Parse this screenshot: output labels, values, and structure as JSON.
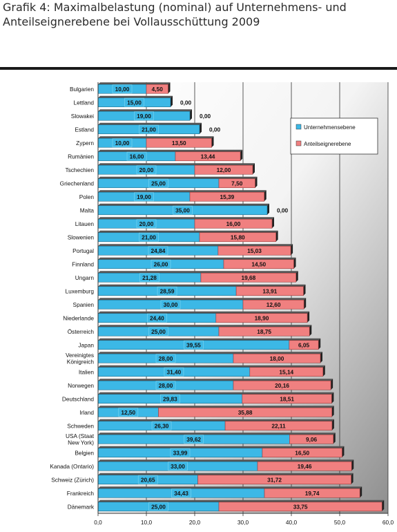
{
  "header": {
    "title_line1": "Grafik 4: Maximalbelastung (nominal) auf Unternehmens- und",
    "title_line2": "Anteilseignerebene bei Vollausschüttung 2009"
  },
  "chart_data": {
    "type": "bar",
    "orientation": "horizontal",
    "stacked": true,
    "categories": [
      "Bulgarien",
      "Lettland",
      "Slowakei",
      "Estland",
      "Zypern",
      "Rumänien",
      "Tschechien",
      "Griechenland",
      "Polen",
      "Malta",
      "Litauen",
      "Slowenien",
      "Portugal",
      "Finnland",
      "Ungarn",
      "Luxemburg",
      "Spanien",
      "Niederlande",
      "Österreich",
      "Japan",
      "Vereinigtes Königreich",
      "Italien",
      "Norwegen",
      "Deutschland",
      "Irland",
      "Schweden",
      "USA (Staat New York)",
      "Belgien",
      "Kanada (Ontario)",
      "Schweiz (Zürich)",
      "Frankreich",
      "Dänemark"
    ],
    "category_lines": [
      [
        "Bulgarien"
      ],
      [
        "Lettland"
      ],
      [
        "Slowakei"
      ],
      [
        "Estland"
      ],
      [
        "Zypern"
      ],
      [
        "Rumänien"
      ],
      [
        "Tschechien"
      ],
      [
        "Griechenland"
      ],
      [
        "Polen"
      ],
      [
        "Malta"
      ],
      [
        "Litauen"
      ],
      [
        "Slowenien"
      ],
      [
        "Portugal"
      ],
      [
        "Finnland"
      ],
      [
        "Ungarn"
      ],
      [
        "Luxemburg"
      ],
      [
        "Spanien"
      ],
      [
        "Niederlande"
      ],
      [
        "Österreich"
      ],
      [
        "Japan"
      ],
      [
        "Vereinigtes",
        "Königreich"
      ],
      [
        "Italien"
      ],
      [
        "Norwegen"
      ],
      [
        "Deutschland"
      ],
      [
        "Irland"
      ],
      [
        "Schweden"
      ],
      [
        "USA (Staat",
        "New York)"
      ],
      [
        "Belgien"
      ],
      [
        "Kanada (Ontario)"
      ],
      [
        "Schweiz (Zürich)"
      ],
      [
        "Frankreich"
      ],
      [
        "Dänemark"
      ]
    ],
    "series": [
      {
        "name": "Unternehmensebene",
        "color": "#3cb8e6",
        "values": [
          10.0,
          15.0,
          19.0,
          21.0,
          10.0,
          16.0,
          20.0,
          25.0,
          19.0,
          35.0,
          20.0,
          21.0,
          24.84,
          26.0,
          21.28,
          28.59,
          30.0,
          24.4,
          25.0,
          39.55,
          28.0,
          31.4,
          28.0,
          29.83,
          12.5,
          26.3,
          39.62,
          33.99,
          33.0,
          20.65,
          34.43,
          25.0
        ],
        "labels": [
          "10,00",
          "15,00",
          "19,00",
          "21,00",
          "10,00",
          "16,00",
          "20,00",
          "25,00",
          "19,00",
          "35,00",
          "20,00",
          "21,00",
          "24,84",
          "26,00",
          "21,28",
          "28,59",
          "30,00",
          "24,40",
          "25,00",
          "39,55",
          "28,00",
          "31,40",
          "28,00",
          "29,83",
          "12,50",
          "26,30",
          "39,62",
          "33,99",
          "33,00",
          "20,65",
          "34,43",
          "25,00"
        ]
      },
      {
        "name": "Anteilseignerebene",
        "color": "#f08080",
        "values": [
          4.5,
          0.0,
          0.0,
          0.0,
          13.5,
          13.44,
          12.0,
          7.5,
          15.39,
          0.0,
          16.0,
          15.8,
          15.03,
          14.5,
          19.68,
          13.91,
          12.6,
          18.9,
          18.75,
          6.05,
          18.0,
          15.14,
          20.16,
          18.51,
          35.88,
          22.11,
          9.06,
          16.5,
          19.46,
          31.72,
          19.74,
          33.75
        ],
        "labels": [
          "4,50",
          "0,00",
          "0,00",
          "0,00",
          "13,50",
          "13,44",
          "12,00",
          "7,50",
          "15,39",
          "0,00",
          "16,00",
          "15,80",
          "15,03",
          "14,50",
          "19,68",
          "13,91",
          "12,60",
          "18,90",
          "18,75",
          "6,05",
          "18,00",
          "15,14",
          "20,16",
          "18,51",
          "35,88",
          "22,11",
          "9,06",
          "16,50",
          "19,46",
          "31,72",
          "19,74",
          "33,75"
        ]
      }
    ],
    "xlim": [
      0,
      60
    ],
    "xticks": [
      0,
      10,
      20,
      30,
      40,
      50,
      60
    ],
    "xtick_labels": [
      "0,0",
      "10,0",
      "20,0",
      "30,0",
      "40,0",
      "50,0",
      "60,0"
    ],
    "grid": true,
    "legend_position": "top-right",
    "background": "gradient white to gray"
  }
}
